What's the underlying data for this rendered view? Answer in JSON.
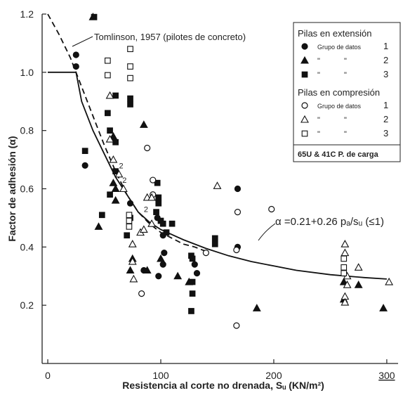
{
  "chart_data": {
    "type": "scatter",
    "xlabel": "Resistencia al corte no drenada, Sᵤ (KN/m²)",
    "ylabel": "Factor de adhesión (α)",
    "xlim": [
      -5,
      310
    ],
    "ylim": [
      0.0,
      1.2
    ],
    "xticks": [
      "0",
      "100",
      "200",
      "300"
    ],
    "xtick_values": [
      0,
      100,
      200,
      300
    ],
    "yticks": [
      "0.2",
      "0.4",
      "0.6",
      "0.8",
      "1.0",
      "1.2"
    ],
    "ytick_values": [
      0.2,
      0.4,
      0.6,
      0.8,
      1.0,
      1.2
    ],
    "annotations": {
      "tomlinson": "Tomlinson, 1957 (pilotes de concreto)",
      "formula": "α =0.21+0.26 pₐ/sᵤ (≤1)"
    },
    "legend": {
      "placement": "top-right",
      "tension_title": "Pilas en extensión",
      "compression_title": "Pilas en compresión",
      "entries": [
        {
          "symbol": "filled-circle",
          "label": "Grupo de datos",
          "num": "1"
        },
        {
          "symbol": "filled-triangle",
          "label": "\"",
          "num": "2"
        },
        {
          "symbol": "filled-square",
          "label": "\"",
          "num": "3"
        },
        {
          "symbol": "open-circle",
          "label": "Grupo de datos",
          "num": "1"
        },
        {
          "symbol": "open-triangle",
          "label": "\"",
          "num": "2"
        },
        {
          "symbol": "open-square",
          "label": "\"",
          "num": "3"
        }
      ],
      "footer": "65U & 41C P. de carga"
    },
    "series": [
      {
        "name": "Pilas en extensión — Grupo de datos 1",
        "marker": "filled-circle",
        "points": [
          [
            25,
            1.06
          ],
          [
            25,
            1.02
          ],
          [
            33,
            0.68
          ],
          [
            73,
            0.55
          ],
          [
            97,
            0.5
          ],
          [
            102,
            0.44
          ],
          [
            103,
            0.38
          ],
          [
            102,
            0.34
          ],
          [
            98,
            0.3
          ],
          [
            85,
            0.32
          ],
          [
            130,
            0.34
          ],
          [
            132,
            0.31
          ],
          [
            168,
            0.6
          ],
          [
            168,
            0.4
          ]
        ]
      },
      {
        "name": "Pilas en extensión — Grupo de datos 2",
        "marker": "filled-triangle",
        "points": [
          [
            40,
            1.19
          ],
          [
            45,
            0.47
          ],
          [
            58,
            0.78
          ],
          [
            58,
            0.62
          ],
          [
            60,
            0.6
          ],
          [
            60,
            0.56
          ],
          [
            73,
            0.32
          ],
          [
            75,
            0.36
          ],
          [
            85,
            0.82
          ],
          [
            88,
            0.32
          ],
          [
            100,
            0.36
          ],
          [
            115,
            0.3
          ],
          [
            125,
            0.28
          ],
          [
            185,
            0.19
          ],
          [
            262,
            0.28
          ],
          [
            262,
            0.22
          ],
          [
            275,
            0.27
          ],
          [
            297,
            0.19
          ]
        ]
      },
      {
        "name": "Pilas en extensión — Grupo de datos 3",
        "marker": "filled-square",
        "points": [
          [
            41,
            1.19
          ],
          [
            33,
            0.73
          ],
          [
            48,
            0.51
          ],
          [
            53,
            0.86
          ],
          [
            55,
            0.8
          ],
          [
            55,
            0.58
          ],
          [
            60,
            0.92
          ],
          [
            60,
            0.76
          ],
          [
            60,
            0.66
          ],
          [
            73,
            0.91
          ],
          [
            73,
            0.89
          ],
          [
            70,
            0.44
          ],
          [
            73,
            0.5
          ],
          [
            97,
            0.62
          ],
          [
            98,
            0.57
          ],
          [
            98,
            0.55
          ],
          [
            96,
            0.52
          ],
          [
            100,
            0.49
          ],
          [
            102,
            0.48
          ],
          [
            105,
            0.45
          ],
          [
            110,
            0.48
          ],
          [
            127,
            0.37
          ],
          [
            128,
            0.36
          ],
          [
            128,
            0.28
          ],
          [
            128,
            0.24
          ],
          [
            127,
            0.18
          ],
          [
            148,
            0.43
          ],
          [
            148,
            0.41
          ]
        ]
      },
      {
        "name": "Pilas en compresión — Grupo de datos 1",
        "marker": "open-circle",
        "points": [
          [
            83,
            0.24
          ],
          [
            88,
            0.74
          ],
          [
            93,
            0.63
          ],
          [
            93,
            0.58
          ],
          [
            140,
            0.38
          ],
          [
            168,
            0.52
          ],
          [
            167,
            0.39
          ],
          [
            167,
            0.13
          ],
          [
            198,
            0.53
          ]
        ]
      },
      {
        "name": "Pilas en compresión — Grupo de datos 2",
        "marker": "open-triangle",
        "points": [
          [
            55,
            0.92
          ],
          [
            55,
            0.77
          ],
          [
            58,
            0.7
          ],
          [
            63,
            0.65
          ],
          [
            67,
            0.6
          ],
          [
            75,
            0.41
          ],
          [
            75,
            0.35
          ],
          [
            76,
            0.29
          ],
          [
            82,
            0.45
          ],
          [
            88,
            0.57
          ],
          [
            92,
            0.57
          ],
          [
            92,
            0.48
          ],
          [
            85,
            0.46
          ],
          [
            150,
            0.61
          ],
          [
            263,
            0.41
          ],
          [
            263,
            0.38
          ],
          [
            265,
            0.3
          ],
          [
            265,
            0.27
          ],
          [
            263,
            0.23
          ],
          [
            263,
            0.21
          ],
          [
            275,
            0.33
          ],
          [
            302,
            0.28
          ]
        ]
      },
      {
        "name": "Pilas en compresión — Grupo de datos 3",
        "marker": "open-square",
        "points": [
          [
            53,
            1.04
          ],
          [
            53,
            0.99
          ],
          [
            73,
            1.08
          ],
          [
            73,
            1.02
          ],
          [
            73,
            0.98
          ],
          [
            72,
            0.51
          ],
          [
            72,
            0.49
          ],
          [
            72,
            0.47
          ],
          [
            262,
            0.36
          ],
          [
            262,
            0.33
          ],
          [
            262,
            0.31
          ]
        ]
      }
    ],
    "curves": [
      {
        "name": "Tomlinson, 1957 (pilotes de concreto)",
        "style": "dashed",
        "points": [
          [
            0,
            1.2
          ],
          [
            10,
            1.13
          ],
          [
            20,
            1.05
          ],
          [
            30,
            0.95
          ],
          [
            40,
            0.85
          ],
          [
            50,
            0.75
          ],
          [
            60,
            0.66
          ],
          [
            70,
            0.58
          ],
          [
            80,
            0.52
          ],
          [
            90,
            0.48
          ],
          [
            100,
            0.45
          ],
          [
            110,
            0.43
          ],
          [
            120,
            0.41
          ],
          [
            130,
            0.4
          ],
          [
            140,
            0.385
          ]
        ]
      },
      {
        "name": "α =0.21+0.26 pₐ/sᵤ (≤1)",
        "style": "solid",
        "points": [
          [
            0,
            1.0
          ],
          [
            25,
            1.0
          ],
          [
            30,
            0.9
          ],
          [
            40,
            0.8
          ],
          [
            50,
            0.72
          ],
          [
            60,
            0.64
          ],
          [
            70,
            0.58
          ],
          [
            80,
            0.52
          ],
          [
            90,
            0.485
          ],
          [
            100,
            0.46
          ],
          [
            120,
            0.425
          ],
          [
            140,
            0.395
          ],
          [
            160,
            0.37
          ],
          [
            180,
            0.35
          ],
          [
            200,
            0.335
          ],
          [
            220,
            0.32
          ],
          [
            250,
            0.305
          ],
          [
            280,
            0.295
          ],
          [
            300,
            0.29
          ]
        ]
      }
    ],
    "curve_labels": [
      "2",
      "2",
      "2"
    ],
    "grid": false
  }
}
